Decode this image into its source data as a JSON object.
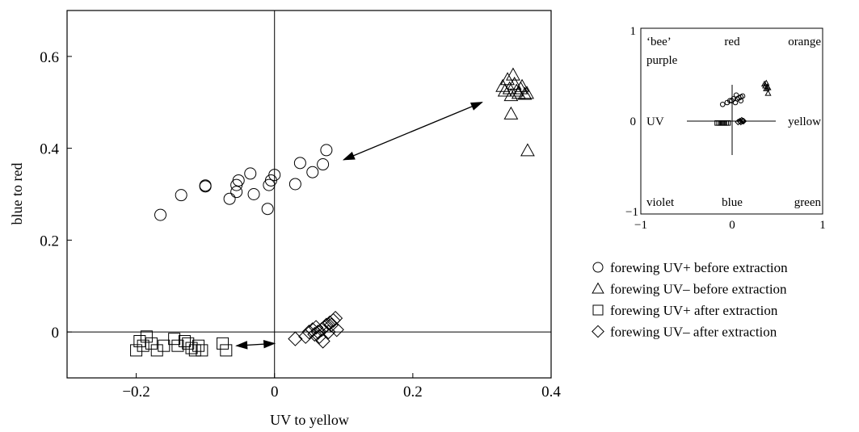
{
  "chart_data": [
    {
      "type": "scatter",
      "title": "",
      "xlabel": "UV to yellow",
      "ylabel": "blue to red",
      "xlim": [
        -0.3,
        0.4
      ],
      "ylim": [
        -0.1,
        0.7
      ],
      "xticks": [
        -0.2,
        0,
        0.2,
        0.4
      ],
      "yticks": [
        0,
        0.2,
        0.4,
        0.6
      ],
      "xtick_labels": [
        "−0.2",
        "0",
        "0.2",
        "0.4"
      ],
      "ytick_labels": [
        "0",
        "0.2",
        "0.4",
        "0.6"
      ],
      "grid": false,
      "reference_lines": {
        "x": 0,
        "y": 0
      },
      "series": [
        {
          "name": "forewing UV+ before extraction",
          "marker": "circle",
          "points": [
            [
              -0.165,
              0.255
            ],
            [
              -0.135,
              0.298
            ],
            [
              -0.1,
              0.317
            ],
            [
              -0.1,
              0.319
            ],
            [
              -0.065,
              0.29
            ],
            [
              -0.055,
              0.305
            ],
            [
              -0.055,
              0.32
            ],
            [
              -0.052,
              0.33
            ],
            [
              -0.035,
              0.345
            ],
            [
              -0.03,
              0.3
            ],
            [
              -0.01,
              0.268
            ],
            [
              -0.008,
              0.32
            ],
            [
              -0.005,
              0.33
            ],
            [
              0,
              0.342
            ],
            [
              0.03,
              0.322
            ],
            [
              0.037,
              0.368
            ],
            [
              0.055,
              0.348
            ],
            [
              0.07,
              0.365
            ],
            [
              0.075,
              0.396
            ]
          ]
        },
        {
          "name": "forewing UV– before extraction",
          "marker": "triangle",
          "points": [
            [
              0.33,
              0.535
            ],
            [
              0.333,
              0.525
            ],
            [
              0.337,
              0.55
            ],
            [
              0.34,
              0.53
            ],
            [
              0.342,
              0.515
            ],
            [
              0.345,
              0.56
            ],
            [
              0.347,
              0.54
            ],
            [
              0.35,
              0.525
            ],
            [
              0.353,
              0.52
            ],
            [
              0.356,
              0.53
            ],
            [
              0.358,
              0.535
            ],
            [
              0.362,
              0.518
            ],
            [
              0.365,
              0.52
            ],
            [
              0.342,
              0.475
            ],
            [
              0.366,
              0.395
            ]
          ]
        },
        {
          "name": "forewing UV+ after extraction",
          "marker": "square",
          "points": [
            [
              -0.2,
              -0.04
            ],
            [
              -0.195,
              -0.02
            ],
            [
              -0.19,
              -0.03
            ],
            [
              -0.185,
              -0.01
            ],
            [
              -0.178,
              -0.025
            ],
            [
              -0.17,
              -0.04
            ],
            [
              -0.16,
              -0.03
            ],
            [
              -0.145,
              -0.015
            ],
            [
              -0.14,
              -0.03
            ],
            [
              -0.13,
              -0.02
            ],
            [
              -0.125,
              -0.025
            ],
            [
              -0.12,
              -0.035
            ],
            [
              -0.115,
              -0.04
            ],
            [
              -0.11,
              -0.03
            ],
            [
              -0.105,
              -0.04
            ],
            [
              -0.075,
              -0.025
            ],
            [
              -0.07,
              -0.04
            ]
          ]
        },
        {
          "name": "forewing UV– after extraction",
          "marker": "diamond",
          "points": [
            [
              0.03,
              -0.015
            ],
            [
              0.045,
              -0.01
            ],
            [
              0.05,
              0
            ],
            [
              0.055,
              0.005
            ],
            [
              0.058,
              -0.005
            ],
            [
              0.06,
              0.01
            ],
            [
              0.063,
              0
            ],
            [
              0.065,
              -0.01
            ],
            [
              0.068,
              0.005
            ],
            [
              0.07,
              -0.02
            ],
            [
              0.072,
              0.01
            ],
            [
              0.075,
              0.015
            ],
            [
              0.078,
              0
            ],
            [
              0.08,
              0.02
            ],
            [
              0.082,
              0.015
            ],
            [
              0.085,
              0.025
            ],
            [
              0.088,
              0.03
            ],
            [
              0.09,
              0.005
            ]
          ]
        }
      ],
      "arrows": [
        {
          "from": [
            0.1,
            0.375
          ],
          "to": [
            0.3,
            0.5
          ],
          "heads": "both"
        },
        {
          "from": [
            -0.055,
            -0.03
          ],
          "to": [
            0.0,
            -0.025
          ],
          "heads": "both"
        }
      ]
    },
    {
      "type": "scatter",
      "title": "",
      "xlim": [
        -1,
        1
      ],
      "ylim": [
        -1,
        1
      ],
      "xtick_labels": [
        "−1",
        "0",
        "1"
      ],
      "ytick_labels": [
        "1",
        "0",
        "−1"
      ],
      "region_labels": {
        "top_left_1": "‘bee’",
        "top_left_2": "purple",
        "top_center": "red",
        "top_right": "orange",
        "mid_left": "UV",
        "mid_right": "yellow",
        "bottom_left": "violet",
        "bottom_center": "blue",
        "bottom_right": "green"
      },
      "series": [
        {
          "marker": "circle",
          "points": [
            [
              -0.1,
              0.18
            ],
            [
              -0.05,
              0.2
            ],
            [
              -0.02,
              0.22
            ],
            [
              0.0,
              0.22
            ],
            [
              0.02,
              0.24
            ],
            [
              0.04,
              0.2
            ],
            [
              0.06,
              0.24
            ],
            [
              0.08,
              0.25
            ],
            [
              0.1,
              0.26
            ],
            [
              0.12,
              0.27
            ],
            [
              0.05,
              0.28
            ],
            [
              0.1,
              0.22
            ]
          ]
        },
        {
          "marker": "triangle",
          "points": [
            [
              0.36,
              0.4
            ],
            [
              0.37,
              0.38
            ],
            [
              0.38,
              0.41
            ],
            [
              0.39,
              0.37
            ],
            [
              0.4,
              0.36
            ],
            [
              0.38,
              0.35
            ],
            [
              0.4,
              0.3
            ]
          ]
        },
        {
          "marker": "square",
          "points": [
            [
              -0.16,
              -0.02
            ],
            [
              -0.14,
              -0.02
            ],
            [
              -0.12,
              -0.02
            ],
            [
              -0.1,
              -0.02
            ],
            [
              -0.08,
              -0.02
            ],
            [
              -0.06,
              -0.02
            ],
            [
              -0.04,
              -0.02
            ]
          ]
        },
        {
          "marker": "diamond",
          "points": [
            [
              0.07,
              -0.01
            ],
            [
              0.09,
              0.0
            ],
            [
              0.1,
              -0.01
            ],
            [
              0.11,
              0.01
            ],
            [
              0.12,
              0.0
            ],
            [
              0.13,
              0.0
            ]
          ]
        }
      ]
    }
  ],
  "legend": [
    {
      "marker": "circle",
      "label": "forewing UV+ before extraction"
    },
    {
      "marker": "triangle",
      "label": "forewing UV– before extraction"
    },
    {
      "marker": "square",
      "label": "forewing UV+ after extraction"
    },
    {
      "marker": "diamond",
      "label": "forewing UV– after extraction"
    }
  ]
}
